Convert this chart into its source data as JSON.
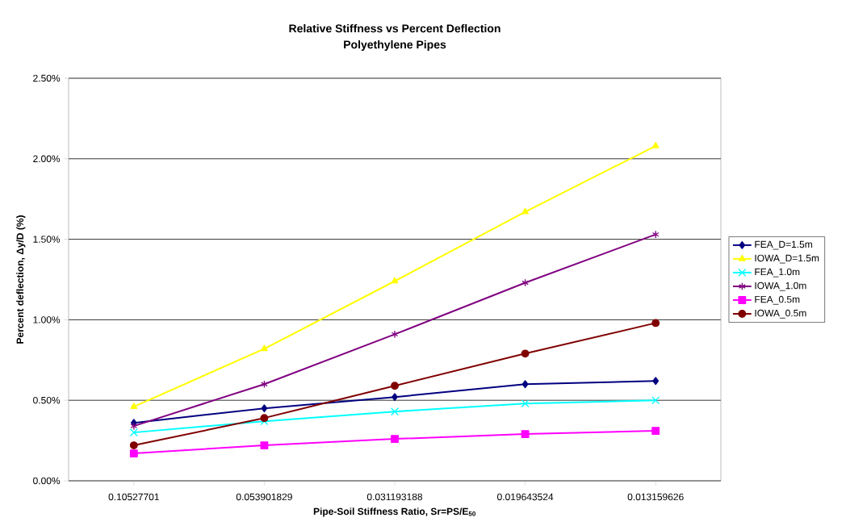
{
  "chart_data": {
    "type": "line",
    "title": "Relative Stiffness vs Percent Deflection",
    "subtitle": "Polyethylene Pipes",
    "xlabel": "Pipe-Soil Stiffness Ratio, Sr=PS/E$_{50}$",
    "ylabel": "Percent deflection, Δy/D (%)",
    "categories": [
      "0.10527701",
      "0.053901829",
      "0.031193188",
      "0.019643524",
      "0.013159626"
    ],
    "series": [
      {
        "name": "FEA_D=1.5m",
        "color": "#000080",
        "marker": "diamond",
        "values": [
          0.36,
          0.45,
          0.52,
          0.6,
          0.62
        ]
      },
      {
        "name": "IOWA_D=1.5m",
        "color": "#ffff00",
        "marker": "triangle",
        "values": [
          0.46,
          0.82,
          1.24,
          1.67,
          2.08
        ]
      },
      {
        "name": "FEA_1.0m",
        "color": "#00ffff",
        "marker": "cross",
        "values": [
          0.3,
          0.37,
          0.43,
          0.48,
          0.5
        ]
      },
      {
        "name": "IOWA_1.0m",
        "color": "#800080",
        "marker": "cross",
        "values": [
          0.34,
          0.6,
          0.91,
          1.23,
          1.53
        ]
      },
      {
        "name": "FEA_0.5m",
        "color": "#ff00ff",
        "marker": "square",
        "values": [
          0.17,
          0.22,
          0.26,
          0.29,
          0.31
        ]
      },
      {
        "name": "IOWA_0.5m",
        "color": "#800000",
        "marker": "circle",
        "values": [
          0.22,
          0.39,
          0.59,
          0.79,
          0.98
        ]
      }
    ],
    "ylim": [
      0,
      2.5
    ],
    "yticks": [
      {
        "value": 0,
        "label": "0.00%"
      },
      {
        "value": 0.5,
        "label": "0.50%"
      },
      {
        "value": 1,
        "label": "1.00%"
      },
      {
        "value": 1.5,
        "label": "1.50%"
      },
      {
        "value": 2,
        "label": "2.00%"
      },
      {
        "value": 2.5,
        "label": "2.50%"
      }
    ],
    "grid": "y",
    "legend": "right",
    "line_style": "solid"
  }
}
